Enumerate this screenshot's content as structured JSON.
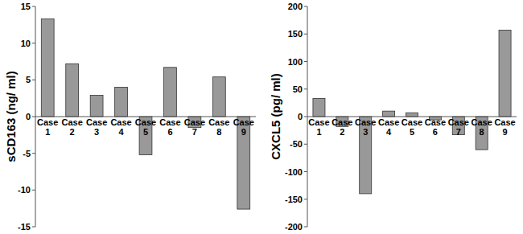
{
  "chart_data": [
    {
      "type": "bar",
      "y_label": "sCD163 (ng/ ml)",
      "categories": [
        "Case 1",
        "Case 2",
        "Case 3",
        "Case 4",
        "Case 5",
        "Case 6",
        "Case 7",
        "Case 8",
        "Case 9"
      ],
      "values": [
        13.3,
        7.2,
        2.9,
        4.0,
        -5.2,
        6.7,
        -1.5,
        5.4,
        -12.6
      ],
      "color": "#999999",
      "ylim": [
        -15,
        15
      ],
      "yticks": [
        -15,
        -10,
        -5,
        0,
        5,
        10,
        15
      ]
    },
    {
      "type": "bar",
      "y_label": "CXCL5 (pg/ ml)",
      "categories": [
        "Case 1",
        "Case 2",
        "Case 3",
        "Case 4",
        "Case 5",
        "Case 6",
        "Case 7",
        "Case 8",
        "Case 9"
      ],
      "values": [
        33,
        -18,
        -140,
        10,
        7,
        -6,
        -33,
        -60,
        157
      ],
      "color": "#999999",
      "ylim": [
        -200,
        200
      ],
      "yticks": [
        -200,
        -150,
        -100,
        -50,
        0,
        50,
        100,
        150,
        200
      ]
    }
  ]
}
